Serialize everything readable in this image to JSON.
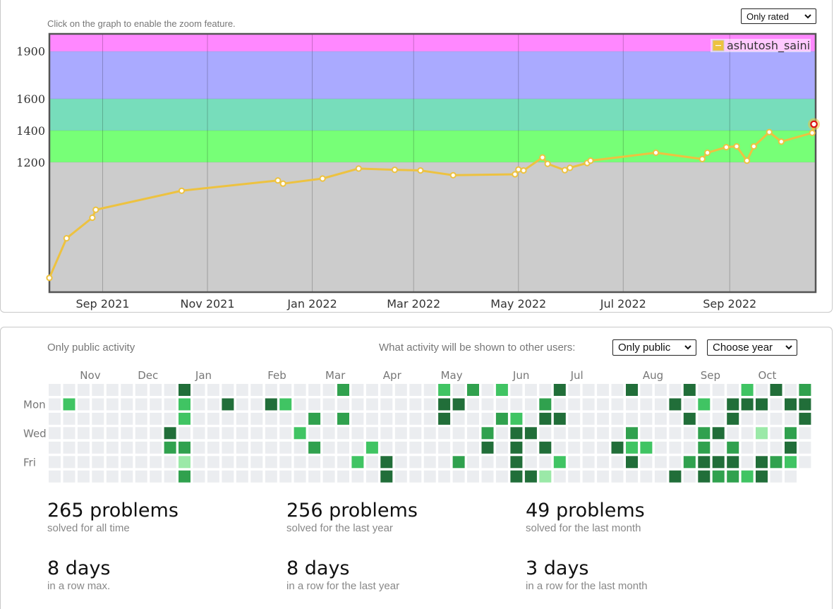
{
  "rating_panel": {
    "zoom_hint": "Click on the graph to enable the zoom feature.",
    "filter_select": "Only rated"
  },
  "chart_data": {
    "type": "line",
    "series": [
      {
        "name": "ashutosh_saini",
        "color": "#edc240",
        "points": [
          [
            "2021-08-01",
            470
          ],
          [
            "2021-08-11",
            720
          ],
          [
            "2021-08-26",
            850
          ],
          [
            "2021-08-28",
            900
          ],
          [
            "2021-10-17",
            1020
          ],
          [
            "2021-12-12",
            1085
          ],
          [
            "2021-12-15",
            1065
          ],
          [
            "2022-01-07",
            1097
          ],
          [
            "2022-01-28",
            1160
          ],
          [
            "2022-02-18",
            1152
          ],
          [
            "2022-03-05",
            1148
          ],
          [
            "2022-03-24",
            1118
          ],
          [
            "2022-04-29",
            1124
          ],
          [
            "2022-05-01",
            1154
          ],
          [
            "2022-05-04",
            1148
          ],
          [
            "2022-05-15",
            1230
          ],
          [
            "2022-05-18",
            1190
          ],
          [
            "2022-05-28",
            1150
          ],
          [
            "2022-05-31",
            1165
          ],
          [
            "2022-06-10",
            1195
          ],
          [
            "2022-06-12",
            1210
          ],
          [
            "2022-07-20",
            1260
          ],
          [
            "2022-08-16",
            1220
          ],
          [
            "2022-08-19",
            1260
          ],
          [
            "2022-08-30",
            1295
          ],
          [
            "2022-09-05",
            1300
          ],
          [
            "2022-09-11",
            1210
          ],
          [
            "2022-09-15",
            1300
          ],
          [
            "2022-09-24",
            1390
          ],
          [
            "2022-10-01",
            1330
          ],
          [
            "2022-10-19",
            1385
          ],
          [
            "2022-10-20",
            1440
          ]
        ]
      }
    ],
    "y_ticks": [
      1200,
      1400,
      1600,
      1900
    ],
    "x_ticks": [
      "Sep 2021",
      "Nov 2021",
      "Jan 2022",
      "Mar 2022",
      "May 2022",
      "Jul 2022",
      "Sep 2022"
    ],
    "x_tick_dates": [
      "2021-09-01",
      "2021-11-01",
      "2022-01-01",
      "2022-03-01",
      "2022-05-01",
      "2022-07-01",
      "2022-09-01"
    ],
    "xlim": [
      "2021-08-01",
      "2022-10-21"
    ],
    "ylim": [
      380,
      2010
    ],
    "bands": [
      {
        "from": 0,
        "to": 1200,
        "color": "#cccccc"
      },
      {
        "from": 1200,
        "to": 1400,
        "color": "#77ff77"
      },
      {
        "from": 1400,
        "to": 1600,
        "color": "#77ddbb"
      },
      {
        "from": 1600,
        "to": 1900,
        "color": "#aaaaff"
      },
      {
        "from": 1900,
        "to": 2100,
        "color": "#ff88ff"
      }
    ],
    "grid": true,
    "legend": "top-right"
  },
  "activity_panel": {
    "title": "Only public activity",
    "visibility_label": "What activity will be shown to other users:",
    "visibility_select": "Only public",
    "year_select": "Choose year",
    "months": [
      {
        "label": "Nov",
        "week": 3
      },
      {
        "label": "Dec",
        "week": 7
      },
      {
        "label": "Jan",
        "week": 11
      },
      {
        "label": "Feb",
        "week": 16
      },
      {
        "label": "Mar",
        "week": 20
      },
      {
        "label": "Apr",
        "week": 24
      },
      {
        "label": "May",
        "week": 28
      },
      {
        "label": "Jun",
        "week": 33
      },
      {
        "label": "Jul",
        "week": 37
      },
      {
        "label": "Aug",
        "week": 42
      },
      {
        "label": "Sep",
        "week": 46
      },
      {
        "label": "Oct",
        "week": 50
      }
    ],
    "day_labels": [
      {
        "label": "Mon",
        "row": 1
      },
      {
        "label": "Wed",
        "row": 3
      },
      {
        "label": "Fri",
        "row": 5
      }
    ],
    "level_colors": [
      "#ebedf0",
      "#9be9a8",
      "#40c463",
      "#30a14e",
      "#216e39"
    ],
    "weeks": 52,
    "last_week_days": 6,
    "cells": [
      [
        1,
        1,
        2
      ],
      [
        9,
        0,
        4
      ],
      [
        9,
        1,
        2
      ],
      [
        9,
        2,
        2
      ],
      [
        9,
        4,
        3
      ],
      [
        9,
        5,
        1
      ],
      [
        9,
        6,
        3
      ],
      [
        8,
        3,
        4
      ],
      [
        8,
        4,
        3
      ],
      [
        12,
        1,
        4
      ],
      [
        15,
        1,
        4
      ],
      [
        16,
        1,
        2
      ],
      [
        17,
        3,
        2
      ],
      [
        18,
        2,
        3
      ],
      [
        18,
        4,
        3
      ],
      [
        20,
        0,
        3
      ],
      [
        20,
        2,
        3
      ],
      [
        22,
        4,
        2
      ],
      [
        21,
        5,
        2
      ],
      [
        23,
        5,
        4
      ],
      [
        23,
        6,
        4
      ],
      [
        27,
        0,
        2
      ],
      [
        27,
        1,
        4
      ],
      [
        27,
        2,
        4
      ],
      [
        28,
        1,
        4
      ],
      [
        28,
        5,
        3
      ],
      [
        29,
        0,
        3
      ],
      [
        30,
        3,
        3
      ],
      [
        30,
        4,
        4
      ],
      [
        31,
        0,
        2
      ],
      [
        31,
        2,
        3
      ],
      [
        32,
        2,
        2
      ],
      [
        32,
        3,
        4
      ],
      [
        32,
        4,
        4
      ],
      [
        32,
        5,
        4
      ],
      [
        32,
        6,
        4
      ],
      [
        33,
        3,
        4
      ],
      [
        33,
        6,
        4
      ],
      [
        34,
        1,
        3
      ],
      [
        34,
        2,
        4
      ],
      [
        34,
        4,
        4
      ],
      [
        34,
        6,
        1
      ],
      [
        35,
        0,
        4
      ],
      [
        35,
        2,
        4
      ],
      [
        35,
        5,
        2
      ],
      [
        39,
        4,
        4
      ],
      [
        40,
        0,
        4
      ],
      [
        40,
        3,
        3
      ],
      [
        40,
        4,
        2
      ],
      [
        40,
        5,
        4
      ],
      [
        41,
        4,
        2
      ],
      [
        43,
        1,
        4
      ],
      [
        43,
        6,
        4
      ],
      [
        44,
        0,
        4
      ],
      [
        44,
        2,
        4
      ],
      [
        44,
        5,
        3
      ],
      [
        45,
        1,
        2
      ],
      [
        45,
        3,
        3
      ],
      [
        45,
        4,
        3
      ],
      [
        45,
        5,
        4
      ],
      [
        45,
        6,
        4
      ],
      [
        46,
        3,
        4
      ],
      [
        46,
        5,
        4
      ],
      [
        46,
        6,
        3
      ],
      [
        47,
        1,
        4
      ],
      [
        47,
        2,
        4
      ],
      [
        47,
        4,
        3
      ],
      [
        47,
        5,
        4
      ],
      [
        47,
        6,
        3
      ],
      [
        48,
        0,
        2
      ],
      [
        48,
        1,
        4
      ],
      [
        48,
        6,
        2
      ],
      [
        49,
        1,
        4
      ],
      [
        49,
        3,
        1
      ],
      [
        49,
        5,
        4
      ],
      [
        49,
        6,
        4
      ],
      [
        50,
        0,
        4
      ],
      [
        50,
        5,
        3
      ],
      [
        51,
        1,
        4
      ],
      [
        51,
        3,
        3
      ],
      [
        51,
        4,
        4
      ],
      [
        51,
        5,
        2
      ],
      [
        52,
        0,
        3
      ],
      [
        52,
        1,
        4
      ],
      [
        52,
        2,
        4
      ]
    ],
    "stats": [
      {
        "value": "265 problems",
        "caption": "solved for all time"
      },
      {
        "value": "256 problems",
        "caption": "solved for the last year"
      },
      {
        "value": "49 problems",
        "caption": "solved for the last month"
      },
      {
        "value": "8 days",
        "caption": "in a row max."
      },
      {
        "value": "8 days",
        "caption": "in a row for the last year"
      },
      {
        "value": "3 days",
        "caption": "in a row for the last month"
      }
    ]
  }
}
